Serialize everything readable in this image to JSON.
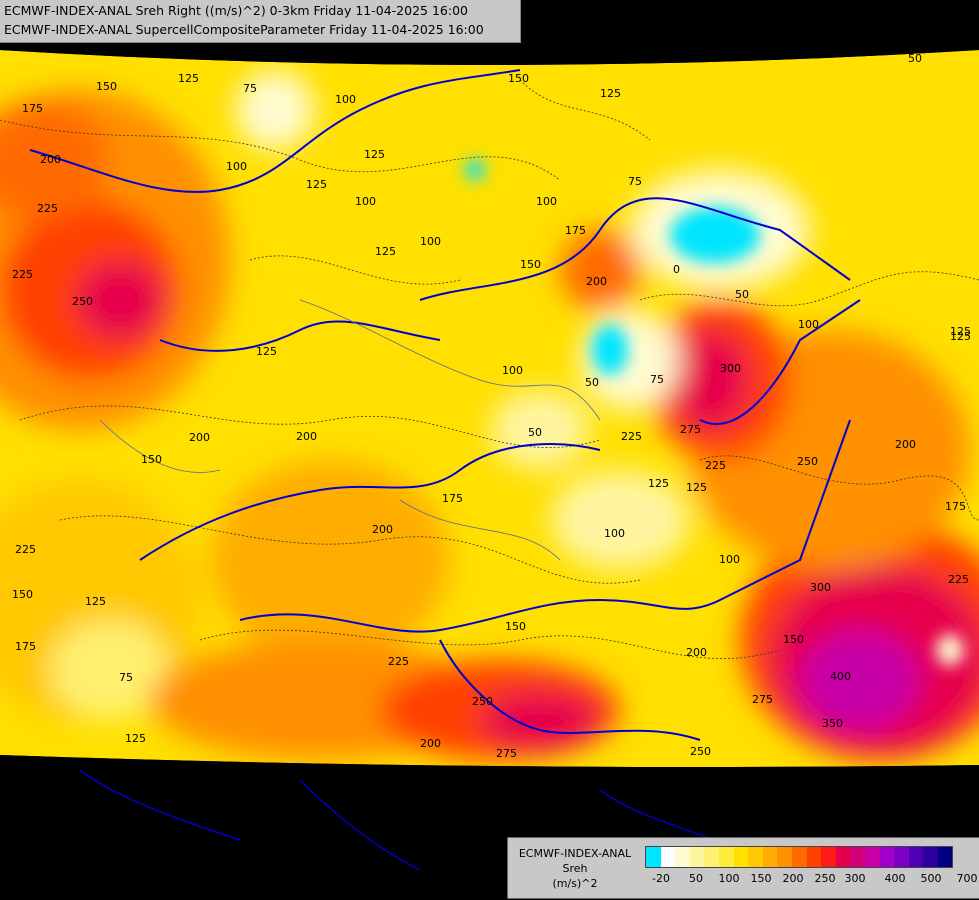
{
  "header": {
    "line1": "ECMWF-INDEX-ANAL Sreh Right ((m/s)^2) 0-3km Friday 11-04-2025 16:00",
    "line2": "ECMWF-INDEX-ANAL SupercellCompositeParameter Friday 11-04-2025 16:00"
  },
  "legend": {
    "caption_line1": "ECMWF-INDEX-ANAL",
    "caption_line2": "Sreh",
    "caption_line3": "(m/s)^2",
    "colors": [
      "#00e5ff",
      "#ffffff",
      "#fffbd0",
      "#fff5a0",
      "#fff070",
      "#ffeb3b",
      "#ffe000",
      "#ffc800",
      "#ffad00",
      "#ff9000",
      "#ff6a00",
      "#ff4000",
      "#ff1a1a",
      "#e6004c",
      "#d4007a",
      "#c800a8",
      "#a000c8",
      "#7a00c8",
      "#5000b4",
      "#2a00a0",
      "#000080"
    ],
    "ticks": [
      "-20",
      "50",
      "100",
      "150",
      "200",
      "250",
      "300",
      "400",
      "500",
      "700"
    ]
  },
  "map": {
    "contour_labels": [
      {
        "text": "50"
      },
      {
        "text": "150"
      },
      {
        "text": "125"
      },
      {
        "text": "75"
      },
      {
        "text": "100"
      },
      {
        "text": "150"
      },
      {
        "text": "125"
      },
      {
        "text": "175"
      },
      {
        "text": "200"
      },
      {
        "text": "225"
      },
      {
        "text": "100"
      },
      {
        "text": "125"
      },
      {
        "text": "100"
      },
      {
        "text": "125"
      },
      {
        "text": "100"
      },
      {
        "text": "75"
      },
      {
        "text": "100"
      },
      {
        "text": "125"
      },
      {
        "text": "150"
      },
      {
        "text": "175"
      },
      {
        "text": "200"
      },
      {
        "text": "0"
      },
      {
        "text": "50"
      },
      {
        "text": "100"
      },
      {
        "text": "125"
      },
      {
        "text": "225"
      },
      {
        "text": "250"
      },
      {
        "text": "125"
      },
      {
        "text": "50"
      },
      {
        "text": "300"
      },
      {
        "text": "75"
      },
      {
        "text": "100"
      },
      {
        "text": "50"
      },
      {
        "text": "225"
      },
      {
        "text": "275"
      },
      {
        "text": "225"
      },
      {
        "text": "125"
      },
      {
        "text": "200"
      },
      {
        "text": "250"
      },
      {
        "text": "175"
      },
      {
        "text": "200"
      },
      {
        "text": "150"
      },
      {
        "text": "175"
      },
      {
        "text": "100"
      },
      {
        "text": "100"
      },
      {
        "text": "225"
      },
      {
        "text": "200"
      },
      {
        "text": "150"
      },
      {
        "text": "125"
      },
      {
        "text": "175"
      },
      {
        "text": "150"
      },
      {
        "text": "125"
      },
      {
        "text": "75"
      },
      {
        "text": "125"
      },
      {
        "text": "125"
      },
      {
        "text": "225"
      },
      {
        "text": "150"
      },
      {
        "text": "200"
      },
      {
        "text": "300"
      },
      {
        "text": "400"
      },
      {
        "text": "275"
      },
      {
        "text": "350"
      },
      {
        "text": "250"
      },
      {
        "text": "200"
      },
      {
        "text": "275"
      },
      {
        "text": "250"
      },
      {
        "text": "225"
      },
      {
        "text": "200"
      }
    ]
  }
}
